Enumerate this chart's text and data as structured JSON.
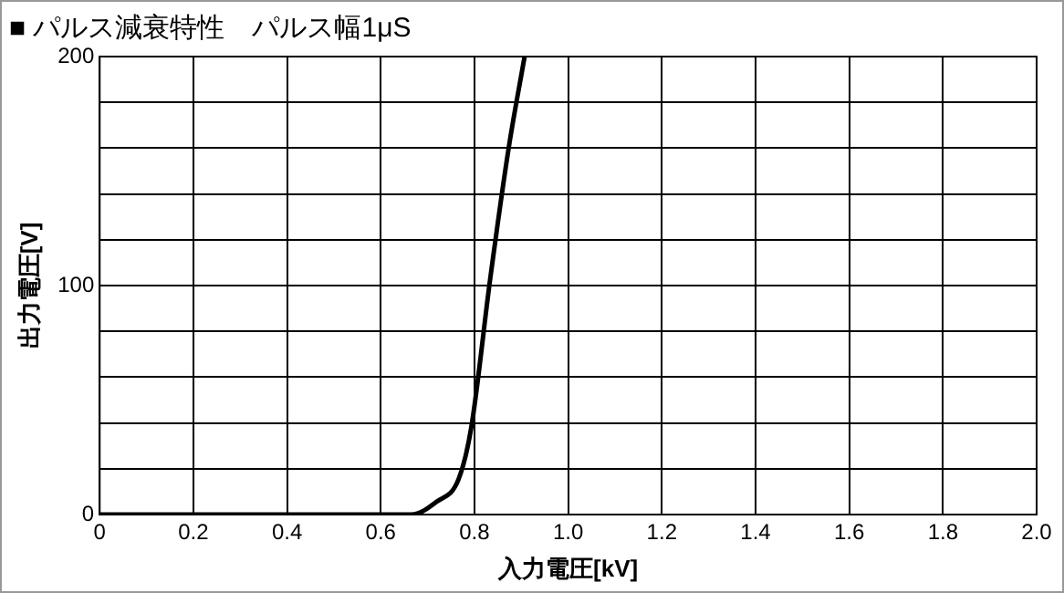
{
  "chart_data": {
    "type": "line",
    "title": "■ パルス減衰特性　パルス幅1μS",
    "xlabel": "入力電圧[kV]",
    "ylabel": "出力電圧[V]",
    "series": [
      {
        "color": "#000000",
        "x": [
          0,
          0.2,
          0.4,
          0.6,
          0.665,
          0.719,
          0.766,
          0.793,
          0.833,
          0.873,
          0.907
        ],
        "values": [
          0,
          0,
          0,
          0,
          0,
          5.6,
          15.4,
          37.8,
          102,
          160,
          200
        ]
      }
    ],
    "xlim": [
      0,
      2
    ],
    "xticks": [
      0,
      0.2,
      0.4,
      0.6,
      0.8,
      {
        "value": 1,
        "label": "1.0"
      },
      1.2,
      1.4,
      1.6,
      1.8,
      {
        "value": 2,
        "label": "2.0"
      }
    ],
    "ylim": [
      0,
      200
    ],
    "yticks": [
      0,
      {
        "value": 20,
        "label": null
      },
      {
        "value": 40,
        "label": null
      },
      {
        "value": 60,
        "label": null
      },
      {
        "value": 80,
        "label": null
      },
      100,
      {
        "value": 120,
        "label": null
      },
      {
        "value": 140,
        "label": null
      },
      {
        "value": 160,
        "label": null
      },
      {
        "value": 180,
        "label": null
      },
      200
    ],
    "grid": true,
    "legend": false,
    "marker": "none",
    "line_style": "solid"
  }
}
